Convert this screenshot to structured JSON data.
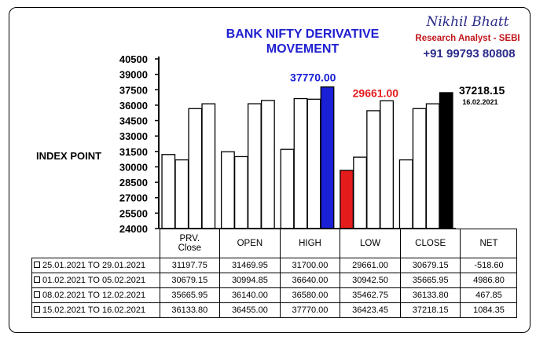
{
  "header": {
    "title_line1": "BANK NIFTY DERIVATIVE",
    "title_line2": "MOVEMENT",
    "author": "Nikhil Bhatt",
    "role": "Research Analyst - SEBI",
    "phone": "+91 99793 80808"
  },
  "chart_data": {
    "type": "bar",
    "ylabel": "INDEX POINT",
    "ylim": [
      24000,
      40500
    ],
    "yticks": [
      "40500",
      "39000",
      "37500",
      "36000",
      "34500",
      "33000",
      "31500",
      "30000",
      "28500",
      "27000",
      "25500",
      "24000"
    ],
    "groups": [
      "PRV. Close",
      "OPEN",
      "HIGH",
      "LOW",
      "CLOSE"
    ],
    "series": [
      {
        "name": "25.01.2021 TO 29.01.2021",
        "values": [
          31197.75,
          31469.95,
          31700.0,
          29661.0,
          30679.15
        ]
      },
      {
        "name": "01.02.2021 TO 05.02.2021",
        "values": [
          30679.15,
          30994.85,
          36640.0,
          30942.5,
          35665.95
        ]
      },
      {
        "name": "08.02.2021 TO 12.02.2021",
        "values": [
          35665.95,
          36140.0,
          36580.0,
          35462.75,
          36133.8
        ]
      },
      {
        "name": "15.02.2021 TO 16.02.2021",
        "values": [
          36133.8,
          36455.0,
          37770.0,
          36423.45,
          37218.15
        ]
      }
    ],
    "highlights": [
      {
        "group": 2,
        "series": 3,
        "color": "#1a20d6",
        "label": "37770.00",
        "label_color": "#1a20d6"
      },
      {
        "group": 3,
        "series": 0,
        "color": "#e51c1c",
        "label": "29661.00",
        "label_color": "#e51c1c"
      },
      {
        "group": 4,
        "series": 3,
        "color": "#000000",
        "label": "37218.15",
        "label_color": "#000000",
        "sublabel": "16.02.2021"
      }
    ],
    "bar_color": "#ffffff"
  },
  "table": {
    "headers": [
      "PRV.\nClose",
      "OPEN",
      "HIGH",
      "LOW",
      "CLOSE",
      "NET"
    ],
    "rows": [
      {
        "label": "25.01.2021 TO 29.01.2021",
        "cells": [
          "31197.75",
          "31469.95",
          "31700.00",
          "29661.00",
          "30679.15",
          "-518.60"
        ]
      },
      {
        "label": "01.02.2021 TO 05.02.2021",
        "cells": [
          "30679.15",
          "30994.85",
          "36640.00",
          "30942.50",
          "35665.95",
          "4986.80"
        ]
      },
      {
        "label": "08.02.2021 TO 12.02.2021",
        "cells": [
          "35665.95",
          "36140.00",
          "36580.00",
          "35462.75",
          "36133.80",
          "467.85"
        ]
      },
      {
        "label": "15.02.2021 TO 16.02.2021",
        "cells": [
          "36133.80",
          "36455.00",
          "37770.00",
          "36423.45",
          "37218.15",
          "1084.35"
        ]
      }
    ]
  }
}
